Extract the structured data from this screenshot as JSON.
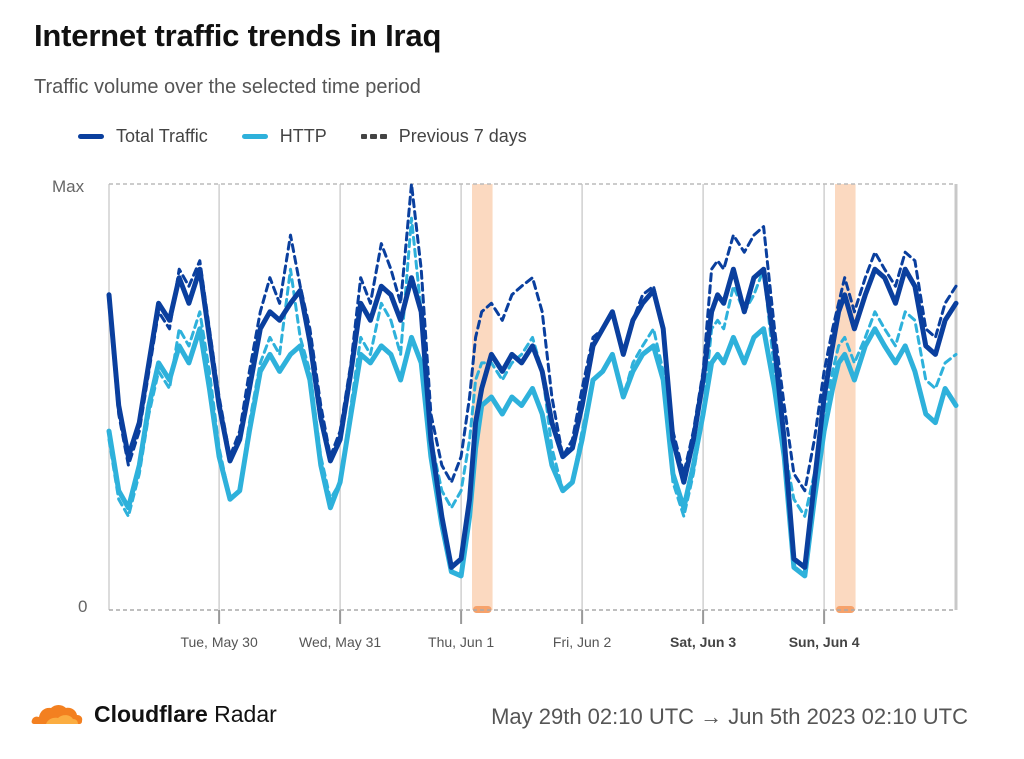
{
  "header": {
    "title": "Internet traffic trends in Iraq",
    "subtitle": "Traffic volume over the selected time period"
  },
  "legend": {
    "total": "Total Traffic",
    "http": "HTTP",
    "previous": "Previous 7 days"
  },
  "footer": {
    "brand_bold": "Cloudflare",
    "brand_rest": " Radar",
    "date_range": "May 29th 02:10 UTC → Jun 5th 2023 02:10 UTC"
  },
  "colors": {
    "total": "#0a3f9e",
    "http": "#2eb1db",
    "highlight": "#fbd9c0",
    "highlight_marker": "#f6a26b",
    "logo_orange": "#f38020",
    "grid": "#d0d0d0"
  },
  "chart_data": {
    "type": "line",
    "title": "Internet traffic trends in Iraq",
    "ylabel_ticks": [
      "Max",
      "0"
    ],
    "ylim": [
      0,
      100
    ],
    "x_start": "May 29 02:10 UTC",
    "x_end": "Jun 5 02:10 UTC",
    "x_ticks": [
      {
        "label": "Tue, May 30",
        "day": 0.91,
        "bold": false
      },
      {
        "label": "Wed, May 31",
        "day": 1.91,
        "bold": false
      },
      {
        "label": "Thu, Jun 1",
        "day": 2.91,
        "bold": false
      },
      {
        "label": "Fri, Jun 2",
        "day": 3.91,
        "bold": false
      },
      {
        "label": "Sat, Jun 3",
        "day": 4.91,
        "bold": true
      },
      {
        "label": "Sun, Jun 4",
        "day": 5.91,
        "bold": true
      }
    ],
    "highlight_ranges_days": [
      [
        3.0,
        3.17
      ],
      [
        6.0,
        6.17
      ]
    ],
    "grid": true,
    "legend_position": "top-left",
    "series": [
      {
        "name": "Total Traffic",
        "style": "solid",
        "x": [
          0.0,
          0.08,
          0.16,
          0.25,
          0.33,
          0.41,
          0.5,
          0.58,
          0.66,
          0.75,
          0.83,
          0.91,
          1.0,
          1.08,
          1.16,
          1.25,
          1.33,
          1.41,
          1.5,
          1.58,
          1.66,
          1.75,
          1.83,
          1.91,
          2.0,
          2.08,
          2.16,
          2.25,
          2.33,
          2.41,
          2.5,
          2.58,
          2.66,
          2.75,
          2.83,
          2.91,
          2.98,
          3.03,
          3.08,
          3.16,
          3.25,
          3.33,
          3.41,
          3.5,
          3.58,
          3.66,
          3.75,
          3.83,
          3.91,
          4.0,
          4.08,
          4.16,
          4.25,
          4.33,
          4.41,
          4.5,
          4.58,
          4.66,
          4.75,
          4.83,
          4.91,
          4.98,
          5.03,
          5.08,
          5.16,
          5.25,
          5.33,
          5.41,
          5.5,
          5.58,
          5.66,
          5.75,
          5.83,
          5.91,
          5.98,
          6.03,
          6.08,
          6.16,
          6.25,
          6.33,
          6.41,
          6.5,
          6.58,
          6.66,
          6.75,
          6.83,
          6.91,
          7.0
        ],
        "values": [
          74,
          48,
          36,
          44,
          58,
          72,
          68,
          78,
          72,
          80,
          64,
          48,
          35,
          40,
          52,
          66,
          70,
          68,
          72,
          75,
          63,
          45,
          35,
          40,
          56,
          72,
          68,
          76,
          74,
          68,
          78,
          70,
          40,
          22,
          10,
          12,
          26,
          44,
          52,
          60,
          56,
          60,
          58,
          62,
          56,
          44,
          36,
          38,
          48,
          62,
          66,
          70,
          60,
          68,
          72,
          75,
          66,
          40,
          30,
          40,
          54,
          70,
          74,
          72,
          80,
          70,
          78,
          80,
          62,
          40,
          12,
          10,
          30,
          50,
          62,
          70,
          74,
          66,
          74,
          80,
          78,
          72,
          80,
          76,
          62,
          60,
          68,
          72
        ],
        "color_key": "total"
      },
      {
        "name": "HTTP",
        "style": "solid",
        "x": [
          0.0,
          0.08,
          0.16,
          0.25,
          0.33,
          0.41,
          0.5,
          0.58,
          0.66,
          0.75,
          0.83,
          0.91,
          1.0,
          1.08,
          1.16,
          1.25,
          1.33,
          1.41,
          1.5,
          1.58,
          1.66,
          1.75,
          1.83,
          1.91,
          2.0,
          2.08,
          2.16,
          2.25,
          2.33,
          2.41,
          2.5,
          2.58,
          2.66,
          2.75,
          2.83,
          2.91,
          2.98,
          3.03,
          3.08,
          3.16,
          3.25,
          3.33,
          3.41,
          3.5,
          3.58,
          3.66,
          3.75,
          3.83,
          3.91,
          4.0,
          4.08,
          4.16,
          4.25,
          4.33,
          4.41,
          4.5,
          4.58,
          4.66,
          4.75,
          4.83,
          4.91,
          4.98,
          5.03,
          5.08,
          5.16,
          5.25,
          5.33,
          5.41,
          5.5,
          5.58,
          5.66,
          5.75,
          5.83,
          5.91,
          5.98,
          6.03,
          6.08,
          6.16,
          6.25,
          6.33,
          6.41,
          6.5,
          6.58,
          6.66,
          6.75,
          6.83,
          6.91,
          7.0
        ],
        "values": [
          42,
          28,
          24,
          34,
          48,
          58,
          54,
          62,
          58,
          66,
          52,
          36,
          26,
          28,
          42,
          56,
          60,
          56,
          60,
          62,
          54,
          34,
          24,
          30,
          46,
          60,
          58,
          62,
          60,
          54,
          64,
          58,
          36,
          20,
          9,
          8,
          22,
          38,
          48,
          50,
          46,
          50,
          48,
          52,
          46,
          34,
          28,
          30,
          40,
          54,
          56,
          60,
          50,
          56,
          60,
          62,
          54,
          32,
          24,
          34,
          46,
          58,
          60,
          58,
          64,
          58,
          64,
          66,
          52,
          36,
          10,
          8,
          26,
          42,
          52,
          58,
          60,
          54,
          62,
          66,
          62,
          58,
          62,
          56,
          46,
          44,
          52,
          48
        ],
        "color_key": "http"
      },
      {
        "name": "Previous 7 days (Total Traffic)",
        "style": "dashed",
        "x": [
          0.0,
          0.08,
          0.16,
          0.25,
          0.33,
          0.41,
          0.5,
          0.58,
          0.66,
          0.75,
          0.83,
          0.91,
          1.0,
          1.08,
          1.16,
          1.25,
          1.33,
          1.41,
          1.5,
          1.58,
          1.66,
          1.75,
          1.83,
          1.91,
          2.0,
          2.08,
          2.16,
          2.25,
          2.33,
          2.41,
          2.5,
          2.58,
          2.66,
          2.75,
          2.83,
          2.91,
          2.98,
          3.03,
          3.08,
          3.16,
          3.25,
          3.33,
          3.41,
          3.5,
          3.58,
          3.66,
          3.75,
          3.83,
          3.91,
          4.0,
          4.08,
          4.16,
          4.25,
          4.33,
          4.41,
          4.5,
          4.58,
          4.66,
          4.75,
          4.83,
          4.91,
          4.98,
          5.03,
          5.08,
          5.16,
          5.25,
          5.33,
          5.41,
          5.5,
          5.58,
          5.66,
          5.75,
          5.83,
          5.91,
          5.98,
          6.03,
          6.08,
          6.16,
          6.25,
          6.33,
          6.41,
          6.5,
          6.58,
          6.66,
          6.75,
          6.83,
          6.91,
          7.0
        ],
        "values": [
          72,
          46,
          34,
          42,
          56,
          70,
          66,
          80,
          76,
          82,
          66,
          50,
          36,
          42,
          56,
          70,
          78,
          72,
          88,
          76,
          66,
          48,
          36,
          42,
          58,
          78,
          72,
          86,
          80,
          72,
          100,
          80,
          46,
          34,
          30,
          36,
          50,
          64,
          70,
          72,
          68,
          74,
          76,
          78,
          70,
          50,
          36,
          40,
          52,
          64,
          66,
          70,
          60,
          68,
          74,
          76,
          66,
          42,
          32,
          42,
          56,
          80,
          82,
          80,
          88,
          84,
          88,
          90,
          66,
          48,
          32,
          28,
          40,
          56,
          66,
          72,
          78,
          70,
          78,
          84,
          80,
          76,
          84,
          82,
          66,
          64,
          72,
          76
        ],
        "color_key": "total"
      },
      {
        "name": "Previous 7 days (HTTP)",
        "style": "dashed",
        "x": [
          0.0,
          0.08,
          0.16,
          0.25,
          0.33,
          0.41,
          0.5,
          0.58,
          0.66,
          0.75,
          0.83,
          0.91,
          1.0,
          1.08,
          1.16,
          1.25,
          1.33,
          1.41,
          1.5,
          1.58,
          1.66,
          1.75,
          1.83,
          1.91,
          2.0,
          2.08,
          2.16,
          2.25,
          2.33,
          2.41,
          2.5,
          2.58,
          2.66,
          2.75,
          2.83,
          2.91,
          2.98,
          3.03,
          3.08,
          3.16,
          3.25,
          3.33,
          3.41,
          3.5,
          3.58,
          3.66,
          3.75,
          3.83,
          3.91,
          4.0,
          4.08,
          4.16,
          4.25,
          4.33,
          4.41,
          4.5,
          4.58,
          4.66,
          4.75,
          4.83,
          4.91,
          4.98,
          5.03,
          5.08,
          5.16,
          5.25,
          5.33,
          5.41,
          5.5,
          5.58,
          5.66,
          5.75,
          5.83,
          5.91,
          5.98,
          6.03,
          6.08,
          6.16,
          6.25,
          6.33,
          6.41,
          6.5,
          6.58,
          6.66,
          6.75,
          6.83,
          6.91,
          7.0
        ],
        "values": [
          40,
          26,
          22,
          32,
          46,
          56,
          52,
          66,
          62,
          70,
          56,
          38,
          26,
          28,
          44,
          58,
          64,
          60,
          80,
          64,
          56,
          36,
          26,
          30,
          48,
          64,
          60,
          72,
          68,
          60,
          92,
          70,
          40,
          28,
          24,
          28,
          40,
          54,
          58,
          58,
          54,
          58,
          60,
          64,
          56,
          38,
          28,
          30,
          42,
          54,
          56,
          60,
          50,
          58,
          62,
          66,
          56,
          30,
          22,
          32,
          46,
          66,
          68,
          66,
          76,
          70,
          74,
          80,
          56,
          38,
          26,
          22,
          32,
          46,
          56,
          62,
          64,
          58,
          64,
          70,
          66,
          62,
          70,
          68,
          54,
          52,
          58,
          60
        ],
        "color_key": "http"
      }
    ]
  }
}
